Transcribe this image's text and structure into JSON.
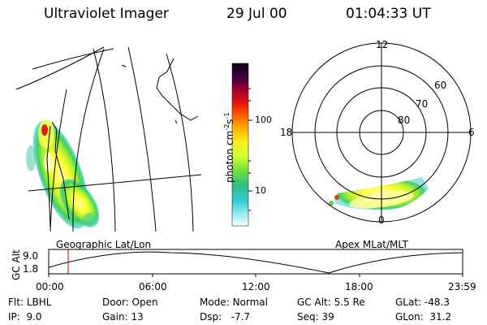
{
  "header": {
    "instrument": "Ultraviolet Imager",
    "date": "29 Jul 00",
    "time": "01:04:33 UT"
  },
  "left_panel": {
    "caption": "Geographic Lat/Lon"
  },
  "colorbar": {
    "unit_label": "photon cm",
    "unit_exp1": "-2",
    "unit_s": "s",
    "unit_exp2": "-1",
    "tick_labels": [
      "100",
      "10"
    ],
    "colors": [
      "#1a0010",
      "#550030",
      "#c80030",
      "#ff3000",
      "#ff9000",
      "#ffd000",
      "#ffff40",
      "#c0ff30",
      "#60e040",
      "#30c8a0",
      "#40d0e0",
      "#a0f0f0",
      "#e8ffff"
    ]
  },
  "polar_plot": {
    "caption": "Apex MLat/MLT",
    "mlt_labels": {
      "top": "12",
      "left": "18",
      "right": "6",
      "bottom": "0"
    },
    "lat_labels": [
      "60",
      "70",
      "80"
    ]
  },
  "timeline": {
    "axis_label": "GC Alt",
    "y_ticks": [
      "9.0",
      "1.8"
    ],
    "x_ticks": [
      "00:00",
      "06:00",
      "12:00",
      "18:00",
      "23:59"
    ],
    "current_time_marker": "01:04"
  },
  "status": {
    "row1": [
      {
        "label": "Flt:",
        "value": "LBHL"
      },
      {
        "label": "Door:",
        "value": "Open"
      },
      {
        "label": "Mode:",
        "value": "Normal"
      },
      {
        "label": "GC Alt:",
        "value": "5.5 Re"
      },
      {
        "label": "GLat:",
        "value": "-48.3"
      }
    ],
    "row2": [
      {
        "label": "IP:",
        "value": "9.0"
      },
      {
        "label": "Gain:",
        "value": "13"
      },
      {
        "label": "Dsp:",
        "value": "-7.7"
      },
      {
        "label": "Seq:",
        "value": "39"
      },
      {
        "label": "GLon:",
        "value": "31.2"
      }
    ]
  }
}
